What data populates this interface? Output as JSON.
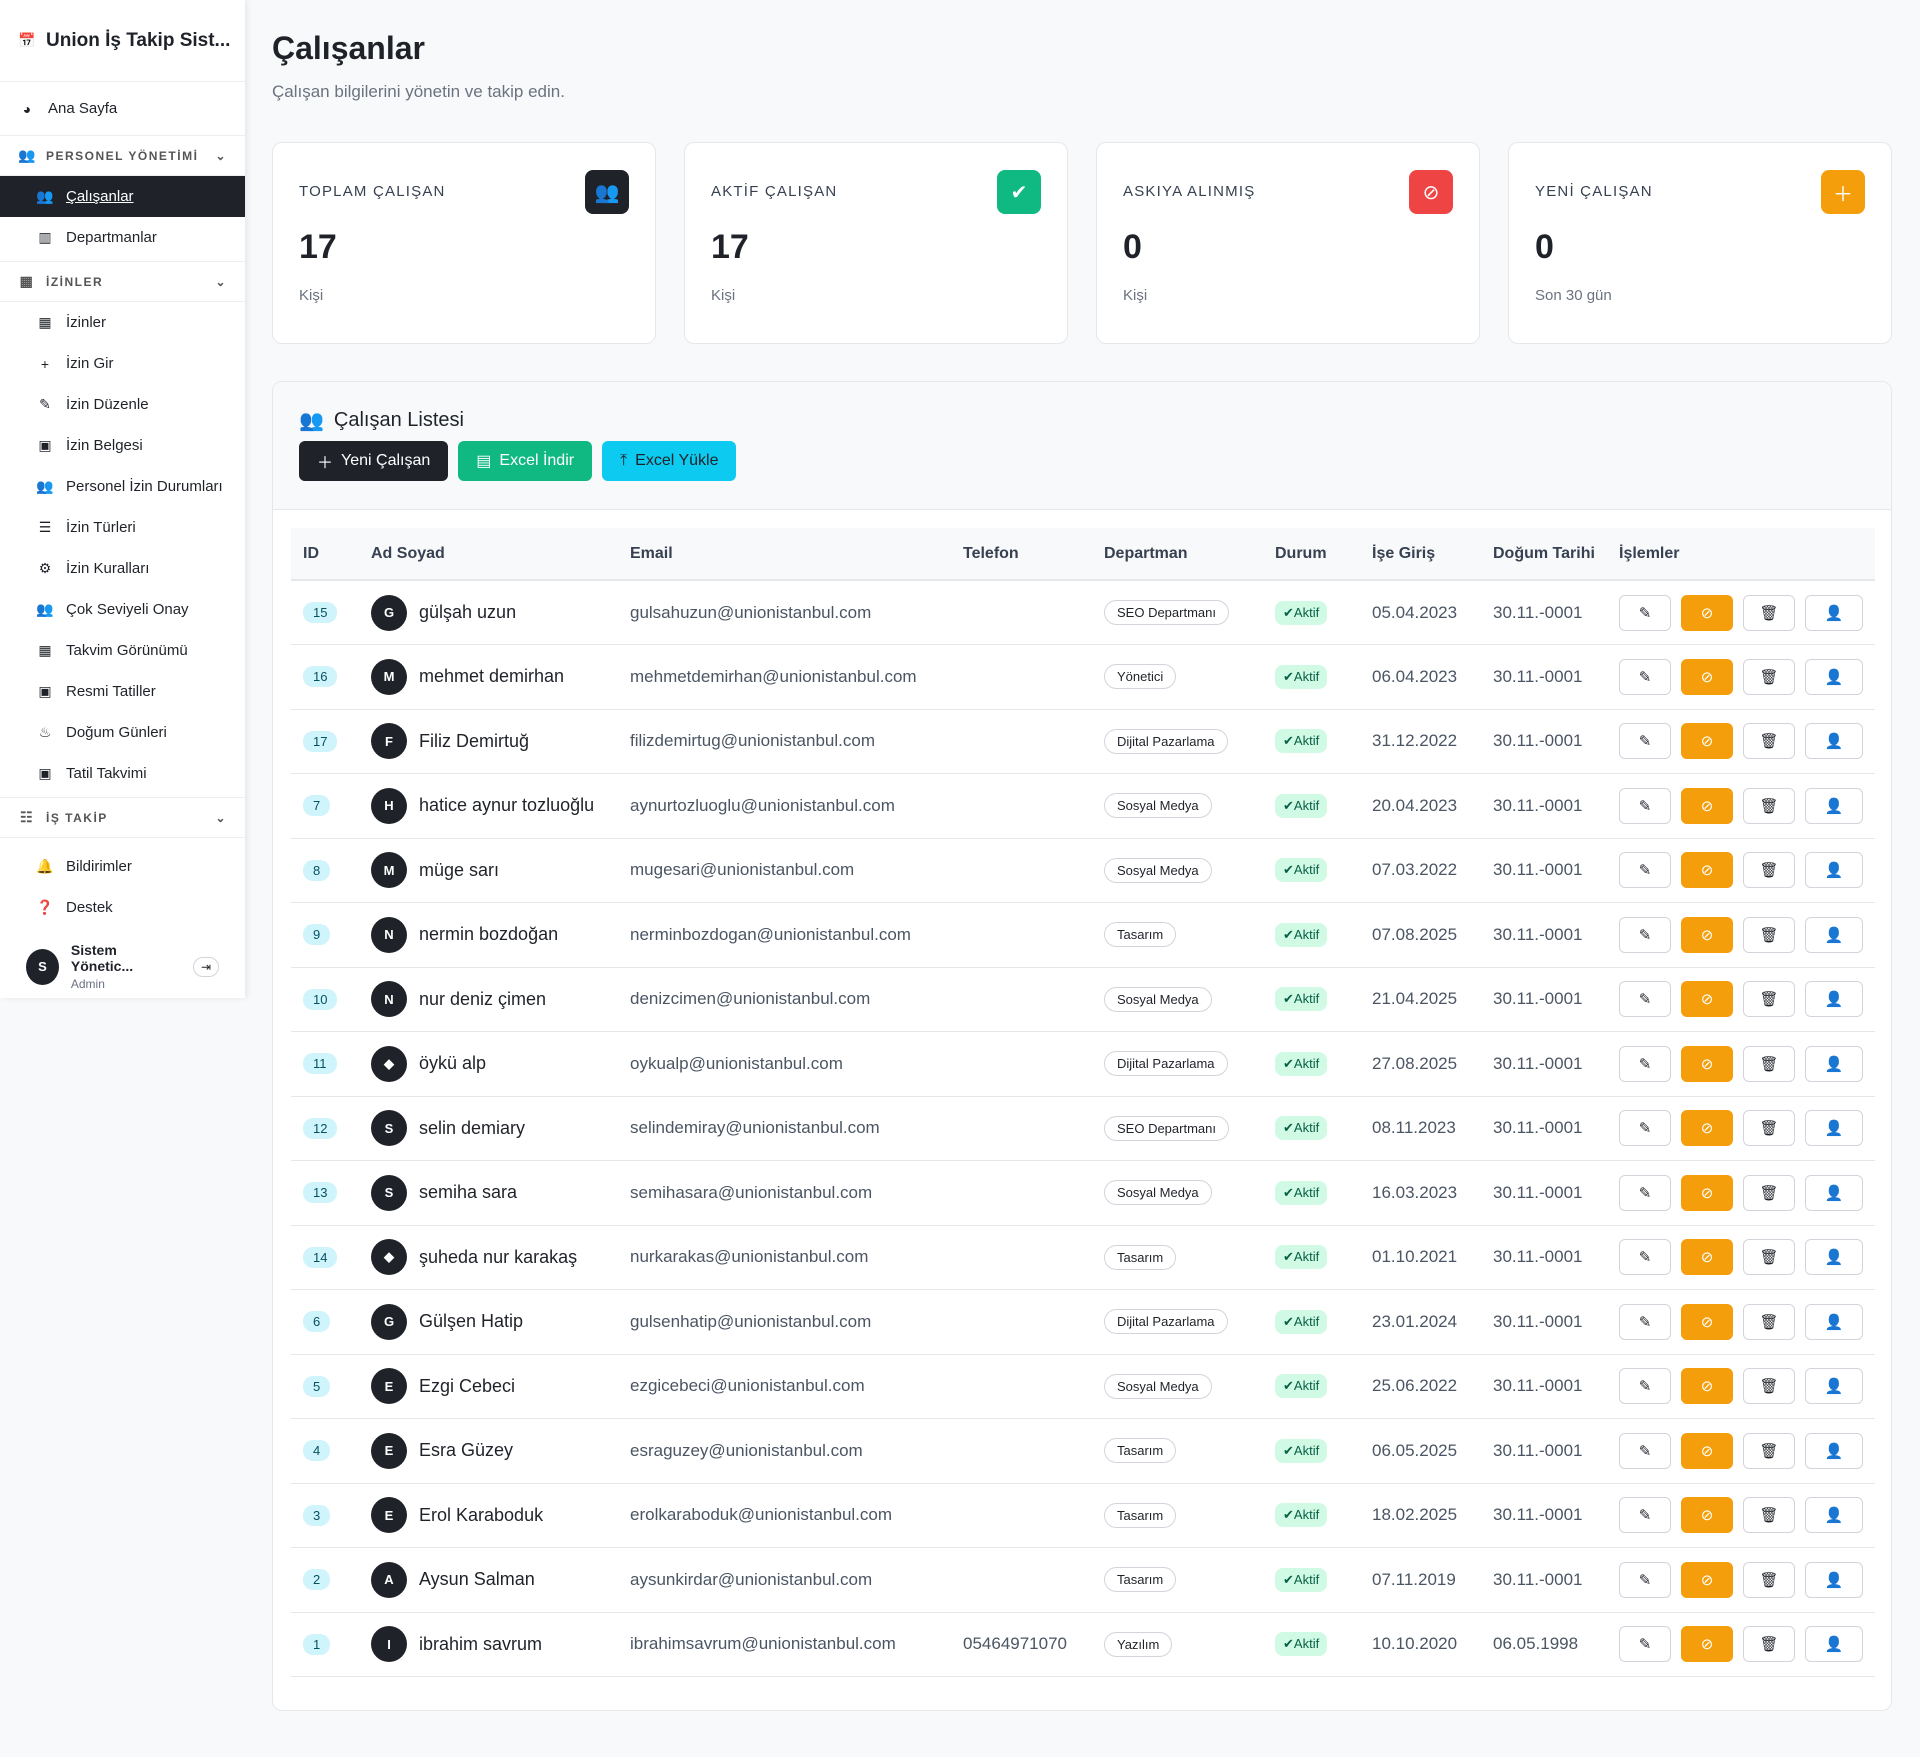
{
  "app": {
    "title": "Union İş Takip Sist..."
  },
  "sidebar": {
    "home": "Ana Sayfa",
    "sections": [
      {
        "label": "PERSONEL YÖNETİMİ",
        "items": [
          "Çalışanlar",
          "Departmanlar"
        ]
      },
      {
        "label": "İZİNLER",
        "items": [
          "İzinler",
          "İzin Gir",
          "İzin Düzenle",
          "İzin Belgesi",
          "Personel İzin Durumları",
          "İzin Türleri",
          "İzin Kuralları",
          "Çok Seviyeli Onay",
          "Takvim Görünümü",
          "Resmi Tatiller",
          "Doğum Günleri",
          "Tatil Takvimi"
        ]
      },
      {
        "label": "İŞ TAKİP",
        "items": []
      }
    ],
    "active": "Çalışanlar",
    "notifications": "Bildirimler",
    "support": "Destek",
    "user": {
      "initial": "S",
      "name": "Sistem Yönetic...",
      "role": "Admin"
    }
  },
  "page": {
    "title": "Çalışanlar",
    "subtitle": "Çalışan bilgilerini yönetin ve takip edin."
  },
  "stats": [
    {
      "label": "TOPLAM ÇALIŞAN",
      "value": "17",
      "unit": "Kişi",
      "color": "#1f2329",
      "icon": "users-icon"
    },
    {
      "label": "AKTİF ÇALIŞAN",
      "value": "17",
      "unit": "Kişi",
      "color": "#10b981",
      "icon": "user-check-icon"
    },
    {
      "label": "ASKIYA ALINMIŞ",
      "value": "0",
      "unit": "Kişi",
      "color": "#ef4444",
      "icon": "user-slash-icon"
    },
    {
      "label": "YENİ ÇALIŞAN",
      "value": "0",
      "unit": "Son 30 gün",
      "color": "#f59e0b",
      "icon": "user-plus-icon"
    }
  ],
  "list": {
    "title": "Çalışan Listesi",
    "buttons": {
      "new": "Yeni Çalışan",
      "export": "Excel İndir",
      "import": "Excel Yükle"
    },
    "columns": [
      "ID",
      "Ad Soyad",
      "Email",
      "Telefon",
      "Departman",
      "Durum",
      "İşe Giriş",
      "Doğum Tarihi",
      "İşlemler"
    ],
    "rows": [
      {
        "id": "15",
        "initial": "G",
        "name": "gülşah uzun",
        "email": "gulsahuzun@unionistanbul.com",
        "phone": "",
        "dept": "SEO Departmanı",
        "status": "Aktif",
        "start": "05.04.2023",
        "birth": "30.11.-0001"
      },
      {
        "id": "16",
        "initial": "M",
        "name": "mehmet demirhan",
        "email": "mehmetdemirhan@unionistanbul.com",
        "phone": "",
        "dept": "Yönetici",
        "status": "Aktif",
        "start": "06.04.2023",
        "birth": "30.11.-0001"
      },
      {
        "id": "17",
        "initial": "F",
        "name": "Filiz Demirtuğ",
        "email": "filizdemirtug@unionistanbul.com",
        "phone": "",
        "dept": "Dijital Pazarlama",
        "status": "Aktif",
        "start": "31.12.2022",
        "birth": "30.11.-0001"
      },
      {
        "id": "7",
        "initial": "H",
        "name": "hatice aynur tozluoğlu",
        "email": "aynurtozluoglu@unionistanbul.com",
        "phone": "",
        "dept": "Sosyal Medya",
        "status": "Aktif",
        "start": "20.04.2023",
        "birth": "30.11.-0001"
      },
      {
        "id": "8",
        "initial": "M",
        "name": "müge sarı",
        "email": "mugesari@unionistanbul.com",
        "phone": "",
        "dept": "Sosyal Medya",
        "status": "Aktif",
        "start": "07.03.2022",
        "birth": "30.11.-0001"
      },
      {
        "id": "9",
        "initial": "N",
        "name": "nermin bozdoğan",
        "email": "nerminbozdogan@unionistanbul.com",
        "phone": "",
        "dept": "Tasarım",
        "status": "Aktif",
        "start": "07.08.2025",
        "birth": "30.11.-0001"
      },
      {
        "id": "10",
        "initial": "N",
        "name": "nur deniz çimen",
        "email": "denizcimen@unionistanbul.com",
        "phone": "",
        "dept": "Sosyal Medya",
        "status": "Aktif",
        "start": "21.04.2025",
        "birth": "30.11.-0001"
      },
      {
        "id": "11",
        "initial": "◆",
        "name": "öykü alp",
        "email": "oykualp@unionistanbul.com",
        "phone": "",
        "dept": "Dijital Pazarlama",
        "status": "Aktif",
        "start": "27.08.2025",
        "birth": "30.11.-0001"
      },
      {
        "id": "12",
        "initial": "S",
        "name": "selin demiary",
        "email": "selindemiray@unionistanbul.com",
        "phone": "",
        "dept": "SEO Departmanı",
        "status": "Aktif",
        "start": "08.11.2023",
        "birth": "30.11.-0001"
      },
      {
        "id": "13",
        "initial": "S",
        "name": "semiha sara",
        "email": "semihasara@unionistanbul.com",
        "phone": "",
        "dept": "Sosyal Medya",
        "status": "Aktif",
        "start": "16.03.2023",
        "birth": "30.11.-0001"
      },
      {
        "id": "14",
        "initial": "◆",
        "name": "şuheda nur karakaş",
        "email": "nurkarakas@unionistanbul.com",
        "phone": "",
        "dept": "Tasarım",
        "status": "Aktif",
        "start": "01.10.2021",
        "birth": "30.11.-0001"
      },
      {
        "id": "6",
        "initial": "G",
        "name": "Gülşen Hatip",
        "email": "gulsenhatip@unionistanbul.com",
        "phone": "",
        "dept": "Dijital Pazarlama",
        "status": "Aktif",
        "start": "23.01.2024",
        "birth": "30.11.-0001"
      },
      {
        "id": "5",
        "initial": "E",
        "name": "Ezgi Cebeci",
        "email": "ezgicebeci@unionistanbul.com",
        "phone": "",
        "dept": "Sosyal Medya",
        "status": "Aktif",
        "start": "25.06.2022",
        "birth": "30.11.-0001"
      },
      {
        "id": "4",
        "initial": "E",
        "name": "Esra Güzey",
        "email": "esraguzey@unionistanbul.com",
        "phone": "",
        "dept": "Tasarım",
        "status": "Aktif",
        "start": "06.05.2025",
        "birth": "30.11.-0001"
      },
      {
        "id": "3",
        "initial": "E",
        "name": "Erol Karaboduk",
        "email": "erolkaraboduk@unionistanbul.com",
        "phone": "",
        "dept": "Tasarım",
        "status": "Aktif",
        "start": "18.02.2025",
        "birth": "30.11.-0001"
      },
      {
        "id": "2",
        "initial": "A",
        "name": "Aysun Salman",
        "email": "aysunkirdar@unionistanbul.com",
        "phone": "",
        "dept": "Tasarım",
        "status": "Aktif",
        "start": "07.11.2019",
        "birth": "30.11.-0001"
      },
      {
        "id": "1",
        "initial": "I",
        "name": "ibrahim savrum",
        "email": "ibrahimsavrum@unionistanbul.com",
        "phone": "05464971070",
        "dept": "Yazılım",
        "status": "Aktif",
        "start": "10.10.2020",
        "birth": "06.05.1998"
      }
    ]
  }
}
